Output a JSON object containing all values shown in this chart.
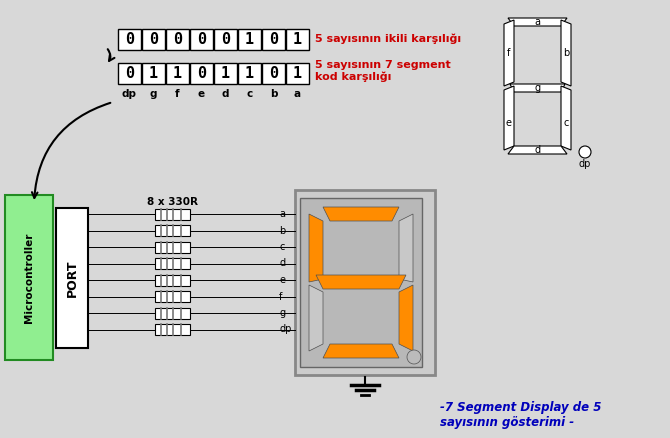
{
  "bg_color": "#d8d8d8",
  "binary_row1": [
    "0",
    "0",
    "0",
    "0",
    "0",
    "1",
    "0",
    "1"
  ],
  "binary_row2": [
    "0",
    "1",
    "1",
    "0",
    "1",
    "1",
    "0",
    "1"
  ],
  "seg_labels": [
    "dp",
    "g",
    "f",
    "e",
    "d",
    "c",
    "b",
    "a"
  ],
  "text1": "5 sayısının ikili karşılığı",
  "text2": "5 sayısının 7 segment\nkod karşılığı",
  "text3": "-7 Segment Display de 5\nsayısının gösterimi -",
  "resistor_label": "8 x 330R",
  "port_label": "PORT",
  "mc_label": "Microcontroller",
  "wire_labels": [
    "a",
    "b",
    "c",
    "d",
    "e",
    "f",
    "g",
    "dp"
  ],
  "seg_color_on": "#FF8C00",
  "seg_color_off": "#c8c8c8",
  "green_color": "#90EE90",
  "red_color": "#cc0000",
  "blue_color": "#0000bb",
  "resistor_body": "#ffffff"
}
